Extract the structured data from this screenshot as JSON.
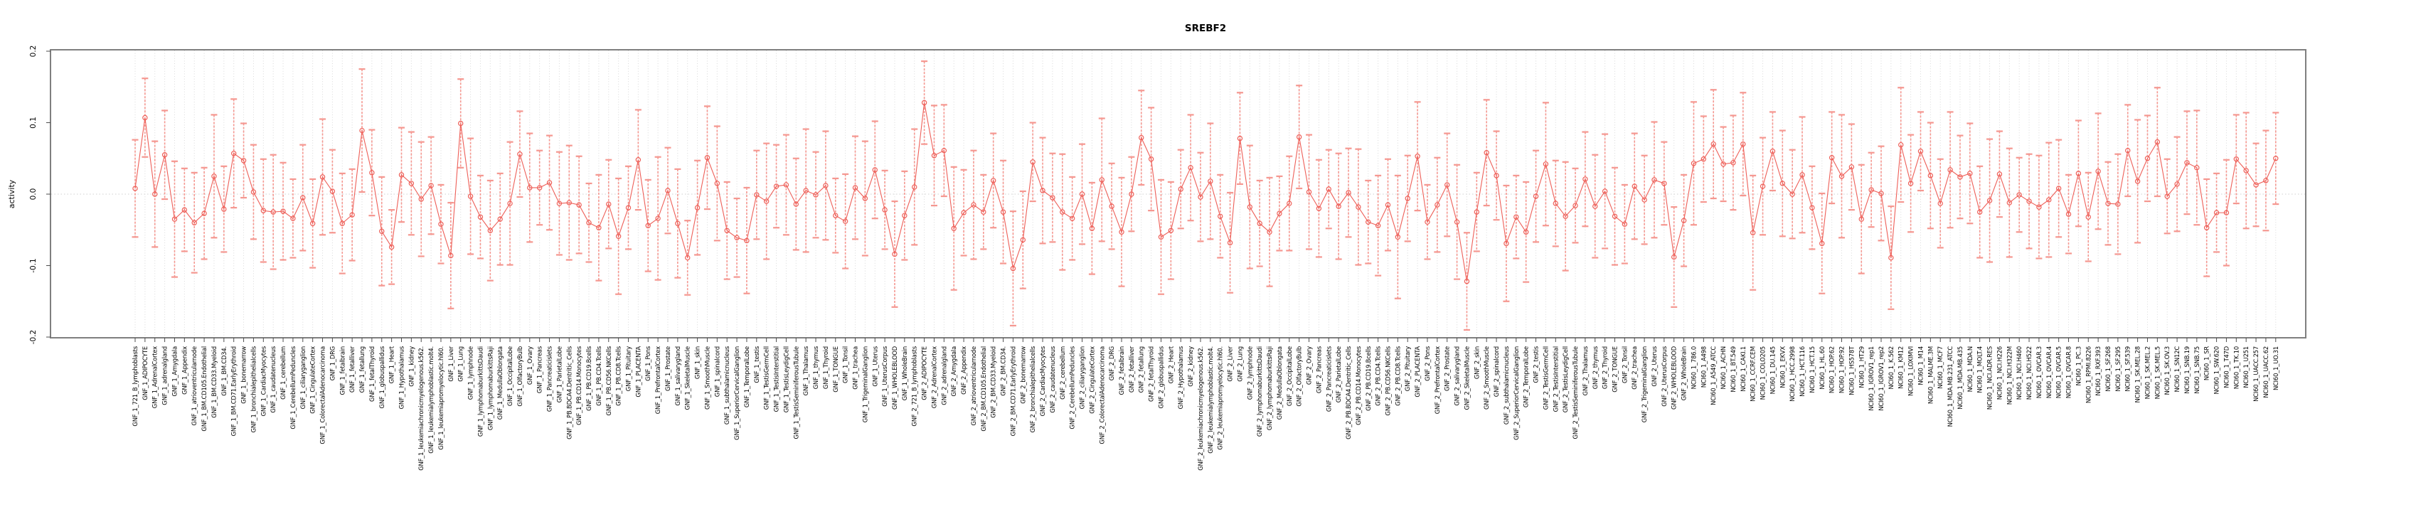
{
  "chart_data": {
    "type": "line",
    "subtype": "points-with-error-bars",
    "title": "SREBF2",
    "xlabel": "",
    "ylabel": "activity",
    "ylim": [
      -0.2,
      0.2
    ],
    "ytick_labels": [
      "0.2",
      "0.1",
      "0.0",
      "-0.1",
      "-0.2"
    ],
    "ytick_values": [
      0.2,
      0.1,
      0.0,
      -0.1,
      -0.2
    ],
    "grid": "dotted vertical gridline per category; dotted horizontal line at 0",
    "legend_position": "none",
    "colors": {
      "point": "#ee5f58",
      "line": "#ee5f58",
      "errorbar": "#f59790",
      "gridline": "#d9d9d9",
      "zero_line": "#cfcfcf",
      "box": "#7f7f7f",
      "text": "#000000",
      "background": "#ffffff"
    },
    "series_groups": [
      {
        "prefix": "GNF_1_",
        "items": [
          "721_B_lymphoblasts",
          "ADIPOCYTE",
          "AdrenalCortex",
          "adrenalgland",
          "Amygdala",
          "Appendix",
          "atrioventricularnode",
          "BM.CD105.Endothelial",
          "BM.CD33.Myeloid",
          "BM.CD34.",
          "BM.CD71.EarlyErythroid",
          "bonemarrow",
          "bronchialepithelialcells",
          "CardiacMyocytes",
          "caudatenucleus",
          "cerebellum",
          "CerebellumPeduncles",
          "ciliaryganglion",
          "CingulateCortex",
          "ColorectalAdenocarcinoma",
          "DRG",
          "fetalbrain",
          "fetalliver",
          "fetallung",
          "fetalThyroid",
          "globuspallidus",
          "Heart",
          "Hypothalamus",
          "kidney",
          "leukemiachronicmyelogenous.k562.",
          "leukemialymphoblastic.molt4.",
          "leukemiapromyelocytic.hl60.",
          "Liver",
          "Lung",
          "lymphnode",
          "lymphomaburkittsDaudi",
          "lymphomaburkittsRaji",
          "MedullaOblongata",
          "OccipitalLobe",
          "OlfactoryBulb",
          "Ovary",
          "Pancreas",
          "Pancreaticislets",
          "ParietalLobe",
          "PB.BDCA4.Dentritic_Cells",
          "PB.CD14.Monocytes",
          "PB.CD19.Bcells",
          "PB.CD4.Tcells",
          "PB.CD56.NKCells",
          "PB.CD8.Tcells",
          "Pituitary",
          "PLACENTA",
          "Pons",
          "PrefrontalCortex",
          "Prostate",
          "salivarygland",
          "SkeletalMuscle",
          "skin",
          "SmoothMuscle",
          "spinalcord",
          "subthalamicnucleus",
          "SuperiorCervicalGanglion",
          "TemporalLobe",
          "testis",
          "TestisGermCell",
          "TestisInterstitial",
          "TestisLeydigCell",
          "TestisSeminiferousTubule",
          "Thalamus",
          "thymus",
          "Thyroid",
          "TONGUE",
          "Tonsil",
          "trachea",
          "TrigeminalGanglion",
          "Uterus",
          "UterusCorpus",
          "WHOLEBLOOD",
          "WholeBrain"
        ]
      },
      {
        "prefix": "GNF_2_",
        "items": [
          "721_B_lymphoblasts",
          "ADIPOCYTE",
          "AdrenalCortex",
          "adrenalgland",
          "Amygdala",
          "Appendix",
          "atrioventricularnode",
          "BM.CD105.Endothelial",
          "BM.CD33.Myeloid",
          "BM.CD34.",
          "BM.CD71.EarlyErythroid",
          "bonemarrow",
          "bronchialepithelialcells",
          "CardiacMyocytes",
          "caudatenucleus",
          "cerebellum",
          "CerebellumPeduncles",
          "ciliaryganglion",
          "CingulateCortex",
          "ColorectalAdenocarcinoma",
          "DRG",
          "fetalbrain",
          "fetalliver",
          "fetallung",
          "fetalThyroid",
          "globuspallidus",
          "Heart",
          "Hypothalamus",
          "kidney",
          "leukemiachronicmyelogenous.k562.",
          "leukemialymphoblastic.molt4.",
          "leukemiapromyelocytic.hl60.",
          "Liver",
          "Lung",
          "lymphnode",
          "lymphomaburkittsDaudi",
          "lymphomaburkittsRaji",
          "MedullaOblongata",
          "OccipitalLobe",
          "OlfactoryBulb",
          "Ovary",
          "Pancreas",
          "Pancreaticislets",
          "ParietalLobe",
          "PB.BDCA4.Dentritic_Cells",
          "PB.CD14.Monocytes",
          "PB.CD19.Bcells",
          "PB.CD4.Tcells",
          "PB.CD56.NKCells",
          "PB.CD8.Tcells",
          "Pituitary",
          "PLACENTA",
          "Pons",
          "PrefrontalCortex",
          "Prostate",
          "salivarygland",
          "SkeletalMuscle",
          "skin",
          "SmoothMuscle",
          "spinalcord",
          "subthalamicnucleus",
          "SuperiorCervicalGanglion",
          "TemporalLobe",
          "testis",
          "TestisGermCell",
          "TestisInterstitial",
          "TestisLeydigCell",
          "TestisSeminiferousTubule",
          "Thalamus",
          "thymus",
          "Thyroid",
          "TONGUE",
          "Tonsil",
          "trachea",
          "TrigeminalGanglion",
          "Uterus",
          "UterusCorpus",
          "WHOLEBLOOD",
          "WholeBrain"
        ]
      },
      {
        "prefix": "NCI60_1_",
        "items": [
          "786.0",
          "A498",
          "A549_ATCC",
          "ACHN",
          "BT.549",
          "CAKI.1",
          "CCRF.CEM",
          "COLO205",
          "DU.145",
          "EKVX",
          "HCC.2998",
          "HCT.116",
          "HCT.15",
          "HL.60",
          "HOP.62",
          "HOP.92",
          "HS578T",
          "HT29",
          "IGROV1_rep1",
          "IGROV1_rep2",
          "K.562",
          "KM12",
          "LOXIMVI",
          "M14",
          "MALME.3M",
          "MCF7",
          "MDA.MB.231_ATCC",
          "MDA.MB.435",
          "MDA.N",
          "MOLT.4",
          "NCI.ADR.RES",
          "NCI.H226",
          "NCI.H322M",
          "NCI.H460",
          "NCI.H522",
          "OVCAR.3",
          "OVCAR.4",
          "OVCAR.5",
          "OVCAR.8",
          "PC.3",
          "RPMI.8226",
          "RXF.393",
          "SF.268",
          "SF.295",
          "SF.539",
          "SK.MEL.28",
          "SK.MEL.2",
          "SK.MEL.5",
          "SK.OV.3",
          "SN12C",
          "SNB.19",
          "SNB.75",
          "SR",
          "SW.620",
          "T47D",
          "TK.10",
          "U251",
          "UACC.257",
          "UACC.62",
          "UO.31"
        ]
      }
    ],
    "values": [
      0.008,
      0.107,
      0.0,
      0.055,
      -0.035,
      -0.022,
      -0.04,
      -0.027,
      0.025,
      -0.021,
      0.057,
      0.047,
      0.003,
      -0.023,
      -0.025,
      -0.024,
      -0.034,
      -0.005,
      -0.041,
      0.024,
      0.004,
      -0.041,
      -0.029,
      0.089,
      0.03,
      -0.052,
      -0.074,
      0.027,
      0.015,
      -0.007,
      0.012,
      -0.042,
      -0.086,
      0.099,
      -0.003,
      -0.032,
      -0.051,
      -0.035,
      -0.013,
      0.056,
      0.009,
      0.009,
      0.016,
      -0.013,
      -0.012,
      -0.015,
      -0.04,
      -0.047,
      -0.014,
      -0.059,
      -0.019,
      0.048,
      -0.044,
      -0.034,
      0.005,
      -0.041,
      -0.089,
      -0.019,
      0.051,
      0.015,
      -0.051,
      -0.061,
      -0.065,
      -0.001,
      -0.01,
      0.011,
      0.013,
      -0.014,
      0.005,
      -0.001,
      0.012,
      -0.03,
      -0.038,
      0.009,
      -0.006,
      0.034,
      -0.022,
      -0.084,
      -0.03,
      0.01,
      0.128,
      0.054,
      0.061,
      -0.048,
      -0.026,
      -0.015,
      -0.025,
      0.019,
      -0.025,
      -0.104,
      -0.064,
      0.045,
      0.005,
      -0.005,
      -0.025,
      -0.034,
      0.0,
      -0.048,
      0.02,
      -0.017,
      -0.053,
      0.0,
      0.079,
      0.049,
      -0.06,
      -0.051,
      0.007,
      0.037,
      -0.004,
      0.018,
      -0.031,
      -0.068,
      0.078,
      -0.018,
      -0.041,
      -0.053,
      -0.027,
      -0.013,
      0.08,
      0.003,
      -0.02,
      0.007,
      -0.017,
      0.002,
      -0.018,
      -0.039,
      -0.044,
      -0.015,
      -0.06,
      -0.006,
      0.053,
      -0.039,
      -0.015,
      0.013,
      -0.039,
      -0.122,
      -0.025,
      0.058,
      0.026,
      -0.069,
      -0.032,
      -0.053,
      -0.003,
      0.042,
      -0.013,
      -0.031,
      -0.016,
      0.021,
      -0.017,
      0.004,
      -0.031,
      -0.042,
      0.011,
      -0.008,
      0.02,
      0.015,
      -0.088,
      -0.037,
      0.043,
      0.049,
      0.07,
      0.042,
      0.044,
      0.07,
      -0.054,
      0.011,
      0.06,
      0.015,
      0.0,
      0.027,
      -0.019,
      -0.069,
      0.051,
      0.025,
      0.038,
      -0.035,
      0.006,
      0.001,
      -0.089,
      0.069,
      0.015,
      0.06,
      0.026,
      -0.013,
      0.034,
      0.024,
      0.029,
      -0.025,
      -0.009,
      0.028,
      -0.012,
      -0.001,
      -0.01,
      -0.018,
      -0.008,
      0.008,
      -0.028,
      0.029,
      -0.032,
      0.032,
      -0.013,
      -0.014,
      0.061,
      0.018,
      0.05,
      0.073,
      -0.003,
      0.014,
      0.044,
      0.037,
      -0.047,
      -0.026,
      -0.026,
      0.049,
      0.033,
      0.013,
      0.019,
      0.05
    ],
    "ci_halfwidth": [
      0.068,
      0.055,
      0.074,
      0.062,
      0.081,
      0.058,
      0.07,
      0.064,
      0.086,
      0.06,
      0.076,
      0.052,
      0.066,
      0.072,
      0.08,
      0.068,
      0.055,
      0.074,
      0.062,
      0.081,
      0.058,
      0.07,
      0.064,
      0.086,
      0.06,
      0.076,
      0.052,
      0.066,
      0.072,
      0.08,
      0.068,
      0.055,
      0.074,
      0.062,
      0.081,
      0.058,
      0.07,
      0.064,
      0.086,
      0.06,
      0.076,
      0.052,
      0.066,
      0.072,
      0.08,
      0.068,
      0.055,
      0.074,
      0.062,
      0.081,
      0.058,
      0.07,
      0.064,
      0.086,
      0.06,
      0.076,
      0.052,
      0.066,
      0.072,
      0.08,
      0.068,
      0.055,
      0.074,
      0.062,
      0.081,
      0.058,
      0.07,
      0.064,
      0.086,
      0.06,
      0.076,
      0.052,
      0.066,
      0.072,
      0.08,
      0.068,
      0.055,
      0.074,
      0.062,
      0.081,
      0.058,
      0.07,
      0.064,
      0.086,
      0.06,
      0.076,
      0.052,
      0.066,
      0.072,
      0.08,
      0.068,
      0.055,
      0.074,
      0.062,
      0.081,
      0.058,
      0.07,
      0.064,
      0.086,
      0.06,
      0.076,
      0.052,
      0.066,
      0.072,
      0.08,
      0.068,
      0.055,
      0.074,
      0.062,
      0.081,
      0.058,
      0.07,
      0.064,
      0.086,
      0.06,
      0.076,
      0.052,
      0.066,
      0.072,
      0.08,
      0.068,
      0.055,
      0.074,
      0.062,
      0.081,
      0.058,
      0.07,
      0.064,
      0.086,
      0.06,
      0.076,
      0.052,
      0.066,
      0.072,
      0.08,
      0.068,
      0.055,
      0.074,
      0.062,
      0.081,
      0.058,
      0.07,
      0.064,
      0.086,
      0.06,
      0.076,
      0.052,
      0.066,
      0.072,
      0.08,
      0.068,
      0.055,
      0.074,
      0.062,
      0.081,
      0.058,
      0.07,
      0.064,
      0.086,
      0.06,
      0.076,
      0.052,
      0.066,
      0.072,
      0.08,
      0.068,
      0.055,
      0.074,
      0.062,
      0.081,
      0.058,
      0.07,
      0.064,
      0.086,
      0.06,
      0.076,
      0.052,
      0.066,
      0.072,
      0.08,
      0.068,
      0.055,
      0.074,
      0.062,
      0.081,
      0.058,
      0.07,
      0.064,
      0.086,
      0.06,
      0.076,
      0.052,
      0.066,
      0.072,
      0.08,
      0.068,
      0.055,
      0.074,
      0.062,
      0.081,
      0.058,
      0.07,
      0.064,
      0.086,
      0.06,
      0.076,
      0.052,
      0.066,
      0.072,
      0.08,
      0.068,
      0.055,
      0.074,
      0.062,
      0.081,
      0.058,
      0.07,
      0.064
    ]
  }
}
